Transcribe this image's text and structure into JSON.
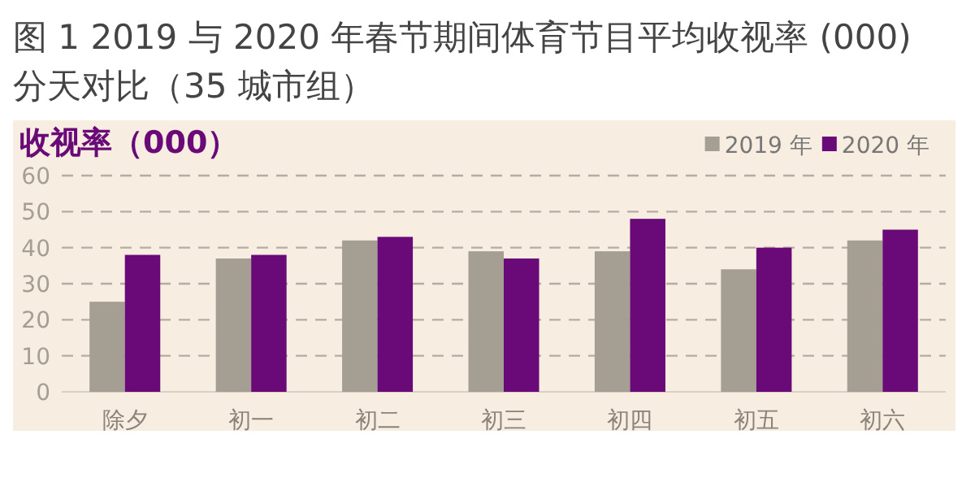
{
  "chart_data": {
    "type": "bar",
    "title": "图 1 2019 与 2020 年春节期间体育节目平均收视率 (000) 分天对比（35 城市组）",
    "ylabel": "收视率（000）",
    "categories": [
      "除夕",
      "初一",
      "初二",
      "初三",
      "初四",
      "初五",
      "初六"
    ],
    "series": [
      {
        "name": "2019 年",
        "color": "#a59e93",
        "values": [
          25,
          37,
          42,
          39,
          39,
          34,
          42
        ]
      },
      {
        "name": "2020 年",
        "color": "#6a0a78",
        "values": [
          38,
          38,
          43,
          37,
          48,
          40,
          45
        ]
      }
    ],
    "ylim": [
      0,
      60
    ],
    "yticks": [
      0,
      10,
      20,
      30,
      40,
      50,
      60
    ],
    "grid": "y",
    "legend": "top right"
  }
}
